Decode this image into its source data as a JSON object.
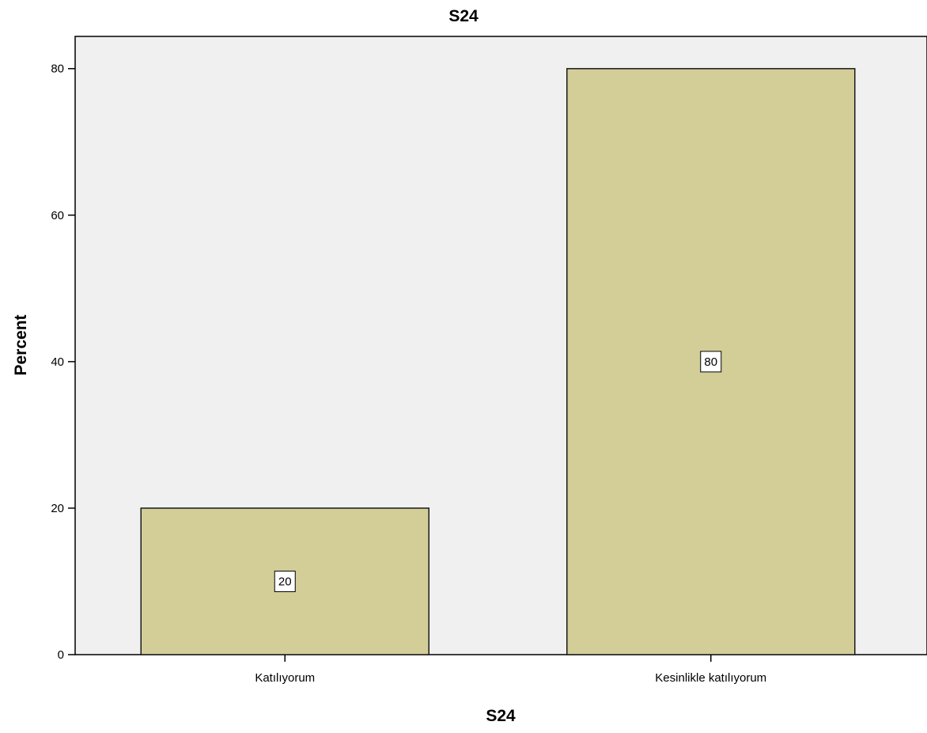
{
  "chart_data": {
    "type": "bar",
    "title": "S24",
    "xlabel": "S24",
    "ylabel": "Percent",
    "categories": [
      "Katılıyorum",
      "Kesinlikle katılıyorum"
    ],
    "values": [
      20,
      80
    ],
    "data_labels": [
      "20",
      "80"
    ],
    "ylim": [
      0,
      84.4
    ],
    "yticks": [
      0,
      20,
      40,
      60,
      80
    ],
    "grid": false,
    "legend": "none",
    "colors": {
      "bar_fill": "#d3ce98",
      "bar_stroke": "#1a1a1a",
      "plot_background": "#f0f0f0",
      "page_background": "#ffffff",
      "axis": "#000000"
    }
  }
}
